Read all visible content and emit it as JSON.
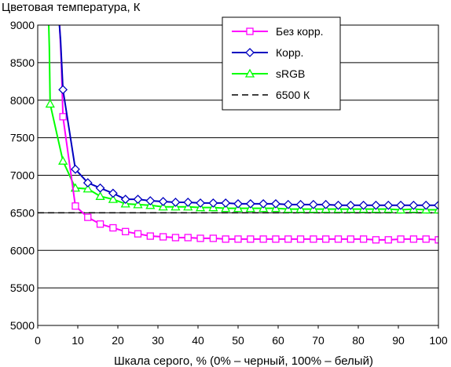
{
  "chart_data": {
    "type": "line",
    "title": "",
    "ylabel": "Цветовая температура, К",
    "xlabel": "Шкала серого, % (0% – черный, 100% – белый)",
    "xlim": [
      0,
      100
    ],
    "ylim": [
      5000,
      9000
    ],
    "xticks": [
      0,
      10,
      20,
      30,
      40,
      50,
      60,
      70,
      80,
      90,
      100
    ],
    "yticks": [
      5000,
      5500,
      6000,
      6500,
      7000,
      7500,
      8000,
      8500,
      9000
    ],
    "grid": "horizontal",
    "legend_position": "top-right",
    "series": [
      {
        "name": "Без корр.",
        "color": "#ff00ff",
        "marker": "square",
        "x": [
          6.3,
          9.4,
          12.5,
          15.6,
          18.8,
          21.9,
          25.0,
          28.1,
          31.3,
          34.4,
          37.5,
          40.6,
          43.8,
          46.9,
          50.0,
          53.1,
          56.3,
          59.4,
          62.5,
          65.6,
          68.8,
          71.9,
          75.0,
          78.1,
          81.3,
          84.4,
          87.5,
          90.6,
          93.8,
          96.9,
          100
        ],
        "y": [
          7780,
          6590,
          6440,
          6350,
          6300,
          6250,
          6220,
          6190,
          6180,
          6170,
          6170,
          6160,
          6160,
          6150,
          6150,
          6150,
          6150,
          6150,
          6150,
          6150,
          6150,
          6150,
          6150,
          6150,
          6150,
          6140,
          6140,
          6150,
          6150,
          6150,
          6140
        ]
      },
      {
        "name": "Корр.",
        "color": "#0000c0",
        "marker": "diamond",
        "x": [
          6.3,
          9.4,
          12.5,
          15.6,
          18.8,
          21.9,
          25.0,
          28.1,
          31.3,
          34.4,
          37.5,
          40.6,
          43.8,
          46.9,
          50.0,
          53.1,
          56.3,
          59.4,
          62.5,
          65.6,
          68.8,
          71.9,
          75.0,
          78.1,
          81.3,
          84.4,
          87.5,
          90.6,
          93.8,
          96.9,
          100
        ],
        "y": [
          8140,
          7080,
          6900,
          6830,
          6760,
          6680,
          6680,
          6660,
          6650,
          6640,
          6640,
          6630,
          6630,
          6630,
          6620,
          6620,
          6620,
          6620,
          6610,
          6610,
          6610,
          6610,
          6600,
          6600,
          6600,
          6600,
          6600,
          6600,
          6600,
          6600,
          6600
        ]
      },
      {
        "name": "sRGB",
        "color": "#00ff00",
        "marker": "triangle",
        "x": [
          3.1,
          6.3,
          9.4,
          12.5,
          15.6,
          18.8,
          21.9,
          25.0,
          28.1,
          31.3,
          34.4,
          37.5,
          40.6,
          43.8,
          46.9,
          50.0,
          53.1,
          56.3,
          59.4,
          62.5,
          65.6,
          68.8,
          71.9,
          75.0,
          78.1,
          81.3,
          84.4,
          87.5,
          90.6,
          93.8,
          96.9,
          100
        ],
        "y": [
          7950,
          7190,
          6830,
          6820,
          6720,
          6680,
          6620,
          6610,
          6600,
          6580,
          6580,
          6580,
          6570,
          6570,
          6560,
          6560,
          6560,
          6560,
          6560,
          6550,
          6550,
          6550,
          6550,
          6550,
          6550,
          6550,
          6550,
          6550,
          6540,
          6550,
          6540,
          6540
        ]
      },
      {
        "name": "6500 К",
        "color": "#000000",
        "marker": "none",
        "dashed": true,
        "x": [
          0,
          100
        ],
        "y": [
          6500,
          6500
        ]
      }
    ]
  }
}
